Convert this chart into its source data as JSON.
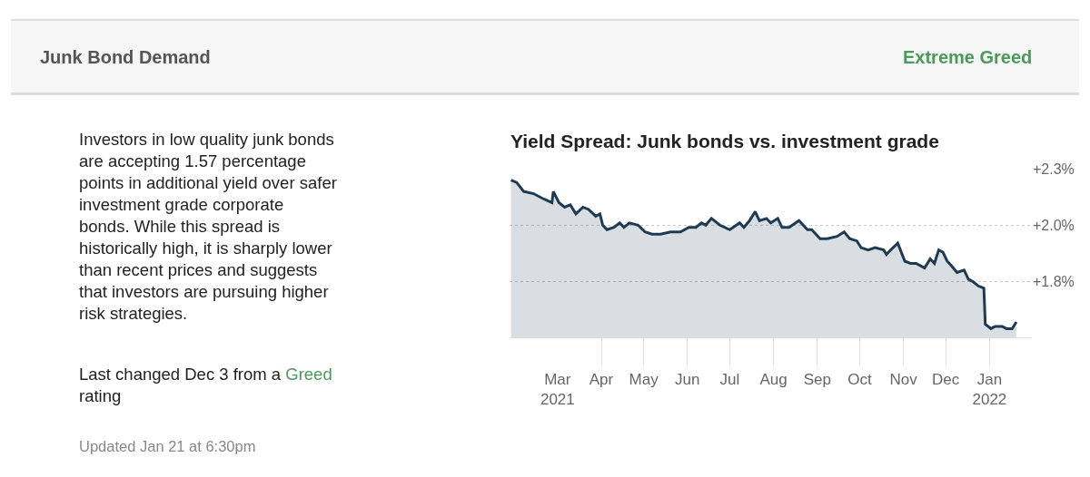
{
  "chart_data": {
    "type": "area",
    "title": "Yield Spread: Junk bonds vs. investment grade",
    "annotations": [
      "Junk Bond Demand",
      "Extreme Greed",
      "Investors in low quality junk bonds\nare accepting 1.57 percentage\npoints in additional yield over safer\ninvestment grade corporate\nbonds. While this spread is\nhistorically high, it is sharply lower\nthan recent prices and suggests\nthat investors are pursuing higher\nrisk strategies.",
      "Last changed Dec 3 from a",
      "Greed",
      "rating",
      "Updated Jan 21 at 6:30pm"
    ],
    "x": [
      "2021-01-27",
      "2021-01-31",
      "2021-02-05",
      "2021-02-12",
      "2021-02-18",
      "2021-02-25",
      "2021-02-26",
      "2021-03-02",
      "2021-03-06",
      "2021-03-10",
      "2021-03-14",
      "2021-03-19",
      "2021-03-23",
      "2021-03-28",
      "2021-03-31",
      "2021-04-02",
      "2021-04-05",
      "2021-04-10",
      "2021-04-14",
      "2021-04-17",
      "2021-04-21",
      "2021-04-27",
      "2021-05-02",
      "2021-05-07",
      "2021-05-13",
      "2021-05-20",
      "2021-05-23",
      "2021-05-27",
      "2021-06-02",
      "2021-06-07",
      "2021-06-11",
      "2021-06-14",
      "2021-06-18",
      "2021-06-24",
      "2021-07-01",
      "2021-07-08",
      "2021-07-11",
      "2021-07-15",
      "2021-07-19",
      "2021-07-22",
      "2021-07-27",
      "2021-07-30",
      "2021-08-04",
      "2021-08-07",
      "2021-08-12",
      "2021-08-19",
      "2021-08-25",
      "2021-08-28",
      "2021-09-03",
      "2021-09-08",
      "2021-09-15",
      "2021-09-20",
      "2021-09-24",
      "2021-09-29",
      "2021-10-02",
      "2021-10-07",
      "2021-10-12",
      "2021-10-18",
      "2021-10-20",
      "2021-10-23",
      "2021-10-28",
      "2021-11-02",
      "2021-11-06",
      "2021-11-10",
      "2021-11-16",
      "2021-11-20",
      "2021-11-23",
      "2021-11-26",
      "2021-11-29",
      "2021-12-02",
      "2021-12-05",
      "2021-12-09",
      "2021-12-14",
      "2021-12-17",
      "2021-12-20",
      "2021-12-24",
      "2021-12-28",
      "2021-12-29",
      "2022-01-02",
      "2022-01-05",
      "2022-01-10",
      "2022-01-13",
      "2022-01-17",
      "2022-01-20"
    ],
    "series": [
      {
        "color": "#1f3b53",
        "values": [
          2.2,
          2.19,
          2.15,
          2.14,
          2.12,
          2.1,
          2.15,
          2.1,
          2.08,
          2.09,
          2.05,
          2.08,
          2.07,
          2.04,
          2.05,
          2.0,
          1.98,
          1.99,
          2.01,
          1.99,
          2.01,
          2.0,
          1.97,
          1.96,
          1.96,
          1.97,
          1.97,
          1.97,
          1.99,
          1.99,
          2.01,
          2.0,
          2.03,
          2.0,
          1.98,
          2.01,
          1.99,
          2.02,
          2.06,
          2.02,
          2.03,
          2.01,
          2.03,
          1.99,
          1.99,
          2.02,
          1.98,
          1.98,
          1.94,
          1.94,
          1.95,
          1.97,
          1.94,
          1.93,
          1.9,
          1.89,
          1.9,
          1.89,
          1.87,
          1.89,
          1.92,
          1.84,
          1.83,
          1.83,
          1.81,
          1.85,
          1.83,
          1.89,
          1.88,
          1.84,
          1.82,
          1.79,
          1.8,
          1.76,
          1.75,
          1.73,
          1.72,
          1.56,
          1.54,
          1.55,
          1.55,
          1.54,
          1.54,
          1.57
        ]
      }
    ],
    "xlim": [
      "2021-01-26",
      "2022-01-31"
    ],
    "xticks": [
      {
        "value": "2021-03-01",
        "label": "Mar\n2021"
      },
      {
        "value": "2021-04-01",
        "label": "Apr"
      },
      {
        "value": "2021-05-01",
        "label": "May"
      },
      {
        "value": "2021-06-01",
        "label": "Jun"
      },
      {
        "value": "2021-07-01",
        "label": "Jul"
      },
      {
        "value": "2021-08-01",
        "label": "Aug"
      },
      {
        "value": "2021-09-01",
        "label": "Sep"
      },
      {
        "value": "2021-10-01",
        "label": "Oct"
      },
      {
        "value": "2021-11-01",
        "label": "Nov"
      },
      {
        "value": "2021-12-01",
        "label": "Dec"
      },
      {
        "value": "2022-01-01",
        "label": "Jan\n2022"
      }
    ],
    "ylim": [
      1.5,
      2.25
    ],
    "yticks": [
      {
        "value": 2.25,
        "label": "+2.3%"
      },
      {
        "value": 2.0,
        "label": "+2.0%"
      },
      {
        "value": 1.75,
        "label": "+1.8%"
      }
    ],
    "grid": "y"
  }
}
